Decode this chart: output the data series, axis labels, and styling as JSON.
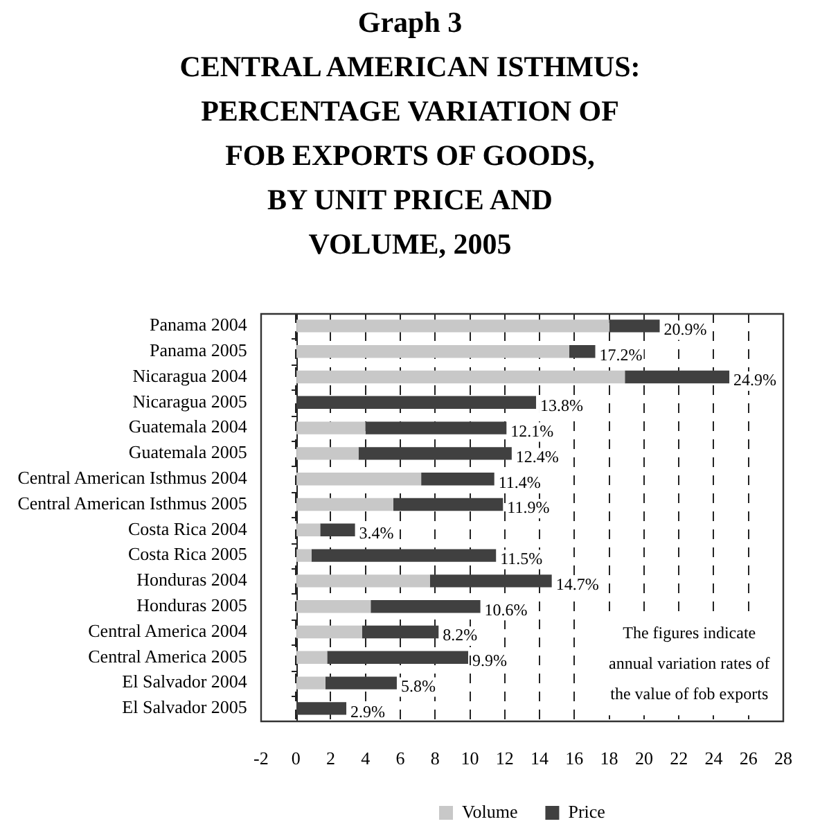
{
  "chart_data": {
    "type": "bar",
    "orientation": "horizontal",
    "stacked": true,
    "title": "Graph 3",
    "subtitle": "CENTRAL AMERICAN ISTHMUS:\nPERCENTAGE VARIATION OF\nFOB EXPORTS OF GOODS,\nBY UNIT PRICE AND\nVOLUME, 2005",
    "categories": [
      "Panama 2004",
      "Panama 2005",
      "Nicaragua 2004",
      "Nicaragua 2005",
      "Guatemala 2004",
      "Guatemala 2005",
      "Central American Isthmus 2004",
      "Central American Isthmus 2005",
      "Costa Rica 2004",
      "Costa Rica 2005",
      "Honduras 2004",
      "Honduras 2005",
      "Central America 2004",
      "Central America 2005",
      "El Salvador 2004",
      "El Salvador 2005"
    ],
    "series": [
      {
        "name": "Volume",
        "color": "#c8c8c8",
        "values": [
          18.0,
          15.7,
          18.9,
          0,
          4.0,
          3.6,
          7.2,
          5.6,
          1.4,
          0.9,
          7.7,
          4.3,
          3.8,
          1.8,
          1.7,
          0
        ]
      },
      {
        "name": "Price",
        "color": "#404040",
        "values": [
          2.9,
          1.5,
          6.0,
          13.8,
          8.1,
          8.8,
          4.2,
          6.3,
          2.0,
          10.6,
          7.0,
          6.3,
          4.4,
          8.1,
          4.1,
          2.9
        ]
      }
    ],
    "totals": [
      "20.9%",
      "17.2%",
      "24.9%",
      "13.8%",
      "12.1%",
      "12.4%",
      "11.4%",
      "11.9%",
      "3.4%",
      "11.5%",
      "14.7%",
      "10.6%",
      "8.2%",
      "9.9%",
      "5.8%",
      "2.9%"
    ],
    "xlim": [
      -2,
      28
    ],
    "xticks": [
      -2,
      0,
      2,
      4,
      6,
      8,
      10,
      12,
      14,
      16,
      18,
      20,
      22,
      24,
      26,
      28
    ],
    "grid": "x",
    "legend": "bottom",
    "annotations": [
      "The figures indicate annual variation rates of the value of fob exports"
    ]
  }
}
